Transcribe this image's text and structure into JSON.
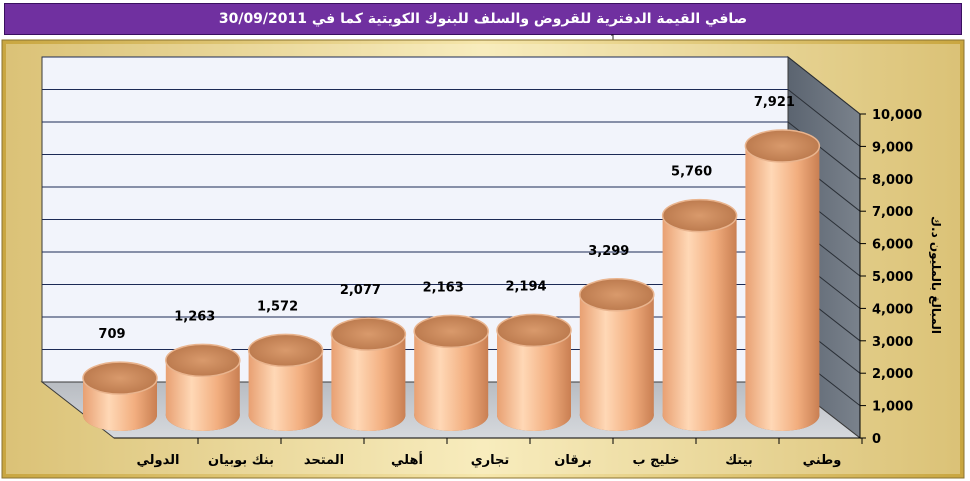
{
  "header": {
    "title": "صافي القيمة الدفترية للقروض والسلف للبنوك الكويتية كما في 30/09/2011",
    "mark": "1"
  },
  "chart_data": {
    "type": "bar",
    "style": "3d-cylinder",
    "categories": [
      "الدولي",
      "بنك بوبيان",
      "المتحد",
      "أهلي",
      "تجاري",
      "برقان",
      "خليج ب",
      "بيتك",
      "وطني"
    ],
    "values": [
      709,
      1263,
      1572,
      2077,
      2163,
      2194,
      3299,
      5760,
      7921
    ],
    "value_labels": [
      "709",
      "1,263",
      "1,572",
      "2,077",
      "2,163",
      "2,194",
      "3,299",
      "5,760",
      "7,921"
    ],
    "ylabel": "المبالغ بالمليون د.ك",
    "ylim": [
      0,
      10000
    ],
    "yticks": [
      "0",
      "1,000",
      "2,000",
      "3,000",
      "4,000",
      "5,000",
      "6,000",
      "7,000",
      "8,000",
      "9,000",
      "10,000"
    ],
    "y_axis_position": "right",
    "grid": true,
    "legend": "none",
    "colors": {
      "bar_body": "#f4b183",
      "bar_top": "#d9966a",
      "back_wall": "#f0f2fa",
      "side_wall": "#6b7480",
      "floor": "#c8ccd0",
      "outer_frame": "#e6c86a",
      "gridline": "#1c2a55"
    }
  }
}
